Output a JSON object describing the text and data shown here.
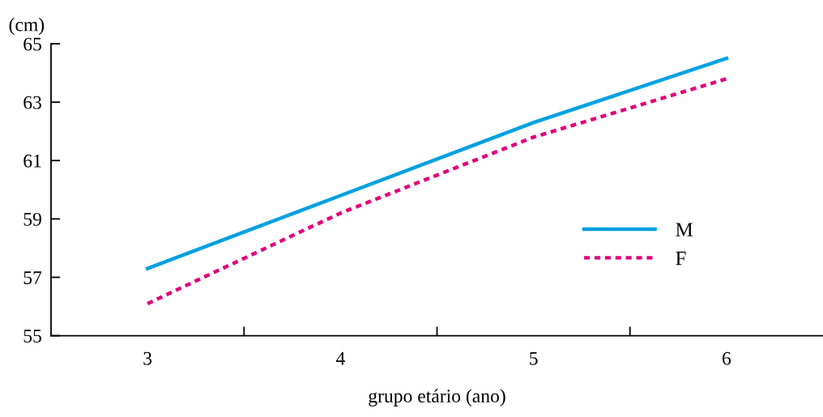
{
  "chart_data": {
    "type": "line",
    "xlabel": "grupo etário (ano)",
    "ylabel": "(cm)",
    "categories": [
      "3",
      "4",
      "5",
      "6"
    ],
    "series": [
      {
        "name": "M",
        "color": "#00a0e0",
        "values": [
          57.3,
          59.8,
          62.3,
          64.5
        ],
        "line_style": "solid"
      },
      {
        "name": "F",
        "color": "#e0007a",
        "values": [
          56.1,
          59.2,
          61.8,
          63.8
        ],
        "line_style": "dotted"
      }
    ],
    "ylim": [
      55,
      65
    ],
    "yticks": [
      55,
      57,
      59,
      61,
      63,
      65
    ],
    "grid": false,
    "legend": "bottom right",
    "marker": "none"
  }
}
